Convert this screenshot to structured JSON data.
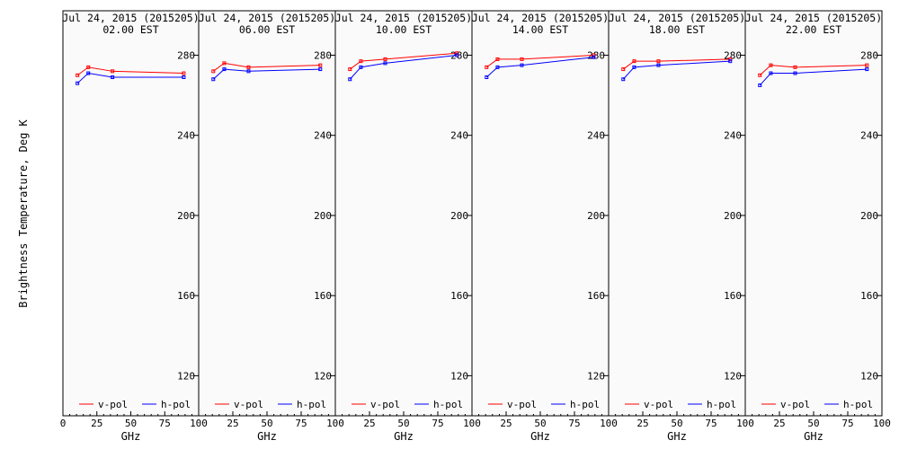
{
  "chart_data": {
    "type": "line",
    "ylabel": "Brightness Temperature, Deg K",
    "xlabel": "GHz",
    "xlim": [
      0,
      100
    ],
    "ylim": [
      100,
      295
    ],
    "xticks": [
      0,
      25,
      50,
      75,
      100
    ],
    "yticks": [
      120,
      160,
      200,
      240,
      280
    ],
    "grid": false,
    "legend_placement": "bottom",
    "series_styles": [
      {
        "name": "v-pol",
        "color": "#ff0000"
      },
      {
        "name": "h-pol",
        "color": "#0000ff"
      }
    ],
    "x": [
      10.7,
      18.7,
      36.5,
      89.0
    ],
    "panels": [
      {
        "title_line1": "Jul 24, 2015 (2015205)",
        "title_line2": "02.00 EST",
        "series": [
          {
            "name": "v-pol",
            "values": [
              270,
              274,
              272,
              271
            ]
          },
          {
            "name": "h-pol",
            "values": [
              266,
              271,
              269,
              269
            ]
          }
        ]
      },
      {
        "title_line1": "Jul 24, 2015 (2015205)",
        "title_line2": "06.00 EST",
        "series": [
          {
            "name": "v-pol",
            "values": [
              272,
              276,
              274,
              275
            ]
          },
          {
            "name": "h-pol",
            "values": [
              268,
              273,
              272,
              273
            ]
          }
        ]
      },
      {
        "title_line1": "Jul 24, 2015 (2015205)",
        "title_line2": "10.00 EST",
        "series": [
          {
            "name": "v-pol",
            "values": [
              273,
              277,
              278,
              281
            ]
          },
          {
            "name": "h-pol",
            "values": [
              268,
              274,
              276,
              280
            ]
          }
        ]
      },
      {
        "title_line1": "Jul 24, 2015 (2015205)",
        "title_line2": "14.00 EST",
        "series": [
          {
            "name": "v-pol",
            "values": [
              274,
              278,
              278,
              280
            ]
          },
          {
            "name": "h-pol",
            "values": [
              269,
              274,
              275,
              279
            ]
          }
        ]
      },
      {
        "title_line1": "Jul 24, 2015 (2015205)",
        "title_line2": "18.00 EST",
        "series": [
          {
            "name": "v-pol",
            "values": [
              273,
              277,
              277,
              278
            ]
          },
          {
            "name": "h-pol",
            "values": [
              268,
              274,
              275,
              277
            ]
          }
        ]
      },
      {
        "title_line1": "Jul 24, 2015 (2015205)",
        "title_line2": "22.00 EST",
        "series": [
          {
            "name": "v-pol",
            "values": [
              270,
              275,
              274,
              275
            ]
          },
          {
            "name": "h-pol",
            "values": [
              265,
              271,
              271,
              273
            ]
          }
        ]
      }
    ]
  }
}
